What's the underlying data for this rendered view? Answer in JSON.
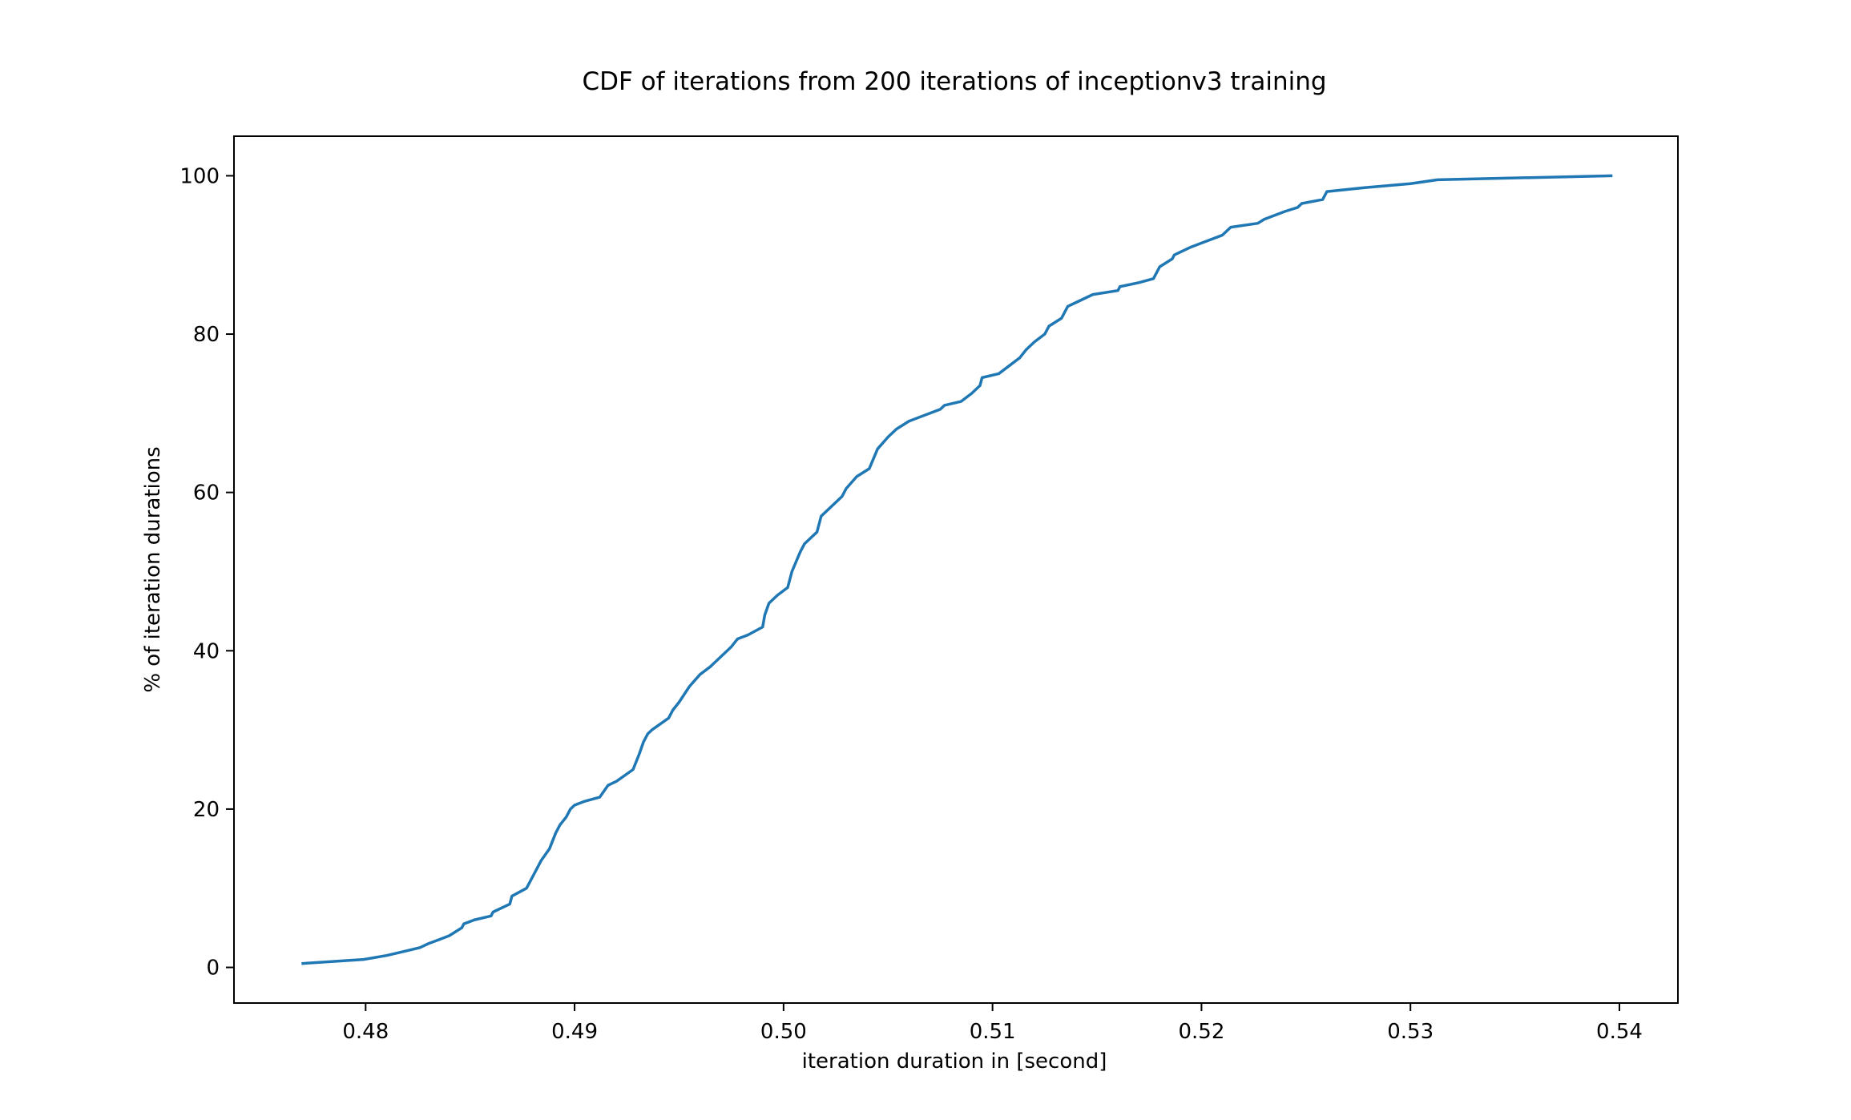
{
  "chart_data": {
    "type": "line",
    "title": "CDF of iterations from 200 iterations of inceptionv3 training",
    "xlabel": "iteration duration in [second]",
    "ylabel": "% of iteration durations",
    "xlim": [
      0.4737,
      0.5428
    ],
    "ylim": [
      -4.5,
      105.0
    ],
    "xticks": [
      0.48,
      0.49,
      0.5,
      0.51,
      0.52,
      0.53,
      0.54
    ],
    "xtick_labels": [
      "0.48",
      "0.49",
      "0.50",
      "0.51",
      "0.52",
      "0.53",
      "0.54"
    ],
    "yticks": [
      0,
      20,
      40,
      60,
      80,
      100
    ],
    "ytick_labels": [
      "0",
      "20",
      "40",
      "60",
      "80",
      "100"
    ],
    "grid": false,
    "line_color": "#1f77b4",
    "series": [
      {
        "x": [
          0.477,
          0.4799,
          0.481,
          0.4818,
          0.4826,
          0.483,
          0.4835,
          0.484,
          0.4846,
          0.4847,
          0.4852,
          0.486,
          0.4861,
          0.4869,
          0.487,
          0.4877,
          0.488,
          0.4882,
          0.4884,
          0.4888,
          0.4891,
          0.4893,
          0.4896,
          0.4898,
          0.49,
          0.4905,
          0.4912,
          0.4916,
          0.492,
          0.4928,
          0.4931,
          0.4933,
          0.4935,
          0.4937,
          0.4945,
          0.4947,
          0.495,
          0.4955,
          0.496,
          0.4965,
          0.4975,
          0.4978,
          0.4983,
          0.499,
          0.4991,
          0.4993,
          0.4997,
          0.5002,
          0.5004,
          0.5008,
          0.501,
          0.5016,
          0.5018,
          0.5028,
          0.503,
          0.5035,
          0.5041,
          0.5045,
          0.505,
          0.5054,
          0.506,
          0.5075,
          0.5077,
          0.5085,
          0.509,
          0.5094,
          0.5095,
          0.5103,
          0.5108,
          0.5113,
          0.5116,
          0.512,
          0.5125,
          0.5127,
          0.5133,
          0.5136,
          0.514,
          0.5148,
          0.516,
          0.5161,
          0.517,
          0.5177,
          0.518,
          0.5186,
          0.5187,
          0.5195,
          0.52,
          0.521,
          0.5214,
          0.5227,
          0.523,
          0.524,
          0.5246,
          0.5248,
          0.5258,
          0.526,
          0.5278,
          0.53,
          0.5313,
          0.5396
        ],
        "y": [
          0.5,
          1.0,
          1.5,
          2.0,
          2.5,
          3.0,
          3.5,
          4.0,
          5.0,
          5.5,
          6.0,
          6.5,
          7.0,
          8.0,
          9.0,
          10.0,
          11.5,
          12.5,
          13.5,
          15.0,
          17.0,
          18.0,
          19.0,
          20.0,
          20.5,
          21.0,
          21.5,
          23.0,
          23.5,
          25.0,
          27.0,
          28.5,
          29.5,
          30.0,
          31.5,
          32.5,
          33.5,
          35.5,
          37.0,
          38.0,
          40.5,
          41.5,
          42.0,
          43.0,
          44.5,
          46.0,
          47.0,
          48.0,
          50.0,
          52.5,
          53.5,
          55.0,
          57.0,
          59.5,
          60.5,
          62.0,
          63.0,
          65.5,
          67.0,
          68.0,
          69.0,
          70.5,
          71.0,
          71.5,
          72.5,
          73.5,
          74.5,
          75.0,
          76.0,
          77.0,
          78.0,
          79.0,
          80.0,
          81.0,
          82.0,
          83.5,
          84.0,
          85.0,
          85.5,
          86.0,
          86.5,
          87.0,
          88.5,
          89.5,
          90.0,
          91.0,
          91.5,
          92.5,
          93.5,
          94.0,
          94.5,
          95.5,
          96.0,
          96.5,
          97.0,
          98.0,
          98.5,
          99.0,
          99.5,
          100.0
        ]
      }
    ]
  }
}
